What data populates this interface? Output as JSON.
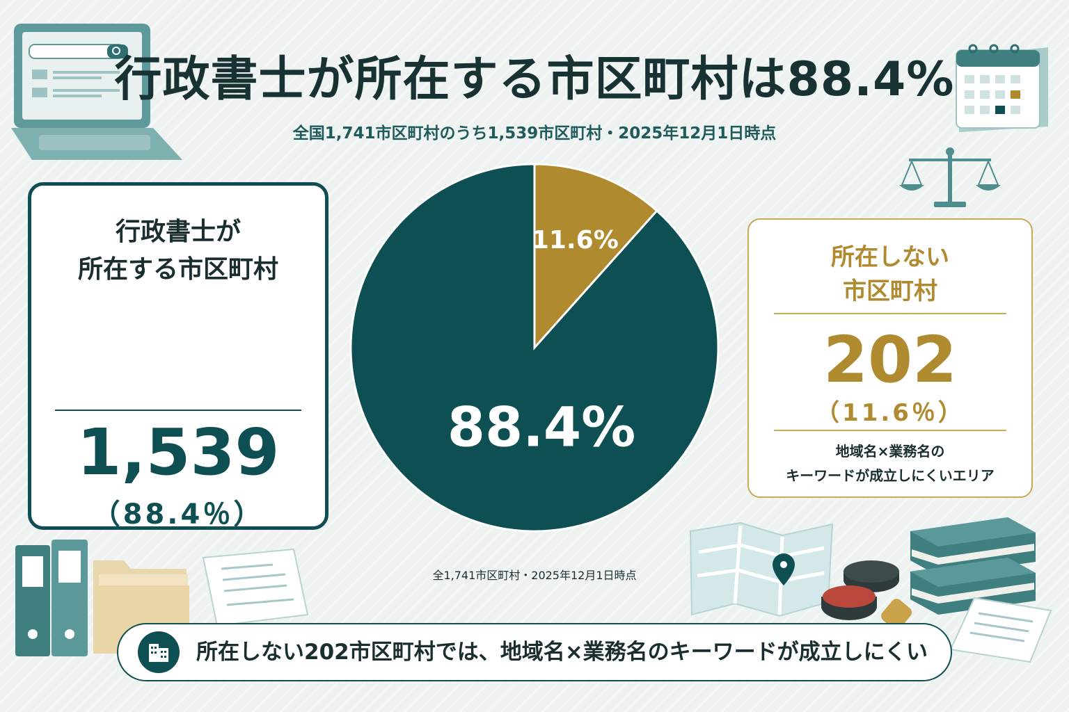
{
  "header": {
    "title": "行政書士が所在する市区町村は88.4%",
    "subtitle": "全国1,741市区町村のうち1,539市区町村・2025年12月1日時点"
  },
  "left_card": {
    "title": "行政書士が\n所在する市区町村",
    "count": "1,539",
    "percent": "（88.4％）"
  },
  "right_card": {
    "title": "所在しない\n市区町村",
    "count": "202",
    "percent": "（11.6％）",
    "note": "地域名×業務名の\nキーワードが成立しにくいエリア"
  },
  "chart_data": {
    "type": "pie",
    "categories": [
      "行政書士が所在する市区町村",
      "所在しない市区町村"
    ],
    "values": [
      88.4,
      11.6
    ],
    "labels": [
      "88.4%",
      "11.6%"
    ],
    "colors": [
      "#0e4f54",
      "#b08a2e"
    ],
    "note": "全1,741市区町村・2025年12月1日時点"
  },
  "banner": {
    "text": "所在しない202市区町村では、地域名×業務名のキーワードが成立しにくい",
    "icon": "building-icon"
  },
  "decorations": [
    "laptop-icon",
    "calendar-icon",
    "scales-icon",
    "map-icon",
    "building-icon",
    "binder-icon",
    "folder-icon",
    "document-icon",
    "stamp-icon",
    "book-icon"
  ]
}
